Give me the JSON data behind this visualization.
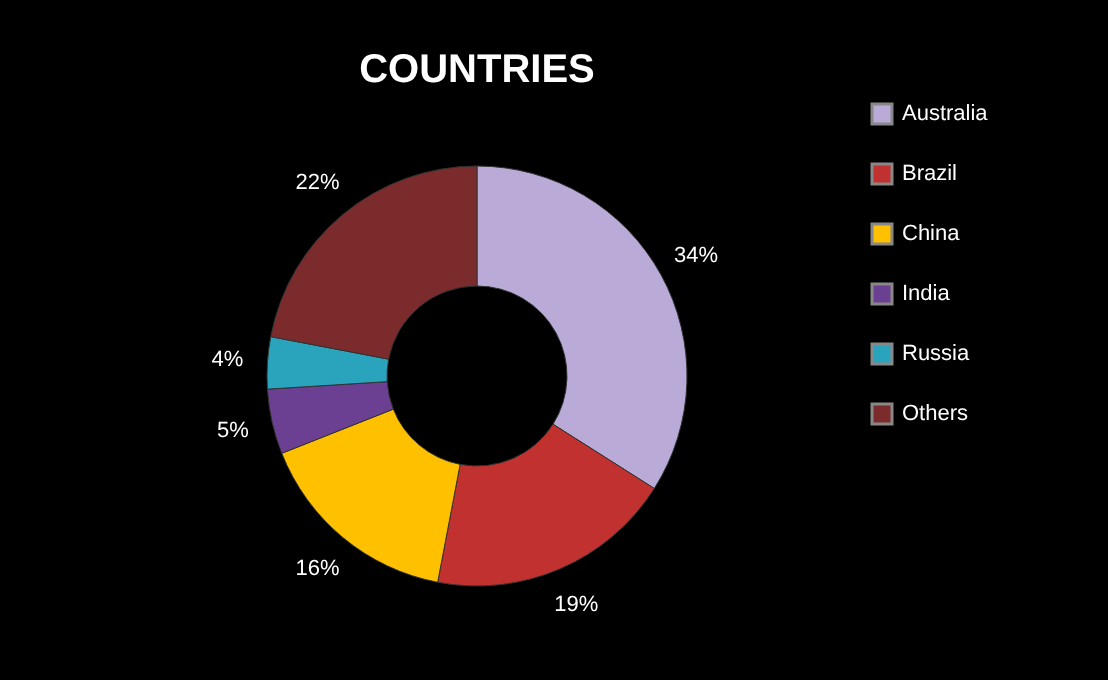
{
  "chart_data": {
    "type": "donut",
    "title": "COUNTRIES",
    "categories": [
      "Australia",
      "Brazil",
      "China",
      "India",
      "Russia",
      "Others"
    ],
    "values": [
      34,
      19,
      16,
      5,
      4,
      22
    ],
    "colors": [
      "#b9aad8",
      "#c0312f",
      "#ffc000",
      "#6b3f92",
      "#2aa3bd",
      "#7b2b2b"
    ],
    "value_labels": [
      "34%",
      "19%",
      "16%",
      "5%",
      "4%",
      "22%"
    ],
    "legend": "right"
  }
}
